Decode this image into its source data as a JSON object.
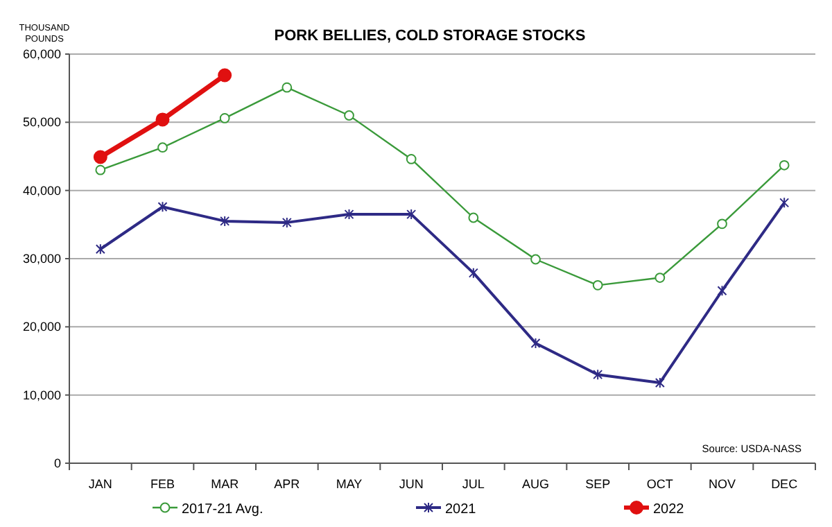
{
  "chart_data": {
    "type": "line",
    "title": "PORK BELLIES, COLD STORAGE STOCKS",
    "ylabel": "THOUSAND POUNDS",
    "categories": [
      "JAN",
      "FEB",
      "MAR",
      "APR",
      "MAY",
      "JUN",
      "JUL",
      "AUG",
      "SEP",
      "OCT",
      "NOV",
      "DEC"
    ],
    "series": [
      {
        "name": "2017-21 Avg.",
        "color": "#3a9a3a",
        "marker": "circle",
        "values": [
          43000,
          46300,
          50600,
          55100,
          51000,
          44600,
          36000,
          29900,
          26100,
          27200,
          35100,
          43700
        ]
      },
      {
        "name": "2021",
        "color": "#2e2a85",
        "marker": "cross",
        "values": [
          31400,
          37600,
          35500,
          35300,
          36500,
          36500,
          27900,
          17600,
          13000,
          11800,
          25300,
          38200
        ]
      },
      {
        "name": "2022",
        "color": "#e01010",
        "marker": "circle",
        "values": [
          44900,
          50400,
          56900,
          null,
          null,
          null,
          null,
          null,
          null,
          null,
          null,
          null
        ]
      }
    ],
    "ylim": [
      0,
      60000
    ],
    "yticks": [
      {
        "value": 0,
        "label": "0"
      },
      {
        "value": 10000,
        "label": "10,000"
      },
      {
        "value": 20000,
        "label": "20,000"
      },
      {
        "value": 30000,
        "label": "30,000"
      },
      {
        "value": 40000,
        "label": "40,000"
      },
      {
        "value": 50000,
        "label": "50,000"
      },
      {
        "value": 60000,
        "label": "60,000"
      }
    ],
    "grid": "y",
    "legend": "bottom",
    "annotations": [
      "Source: USDA-NASS"
    ]
  }
}
